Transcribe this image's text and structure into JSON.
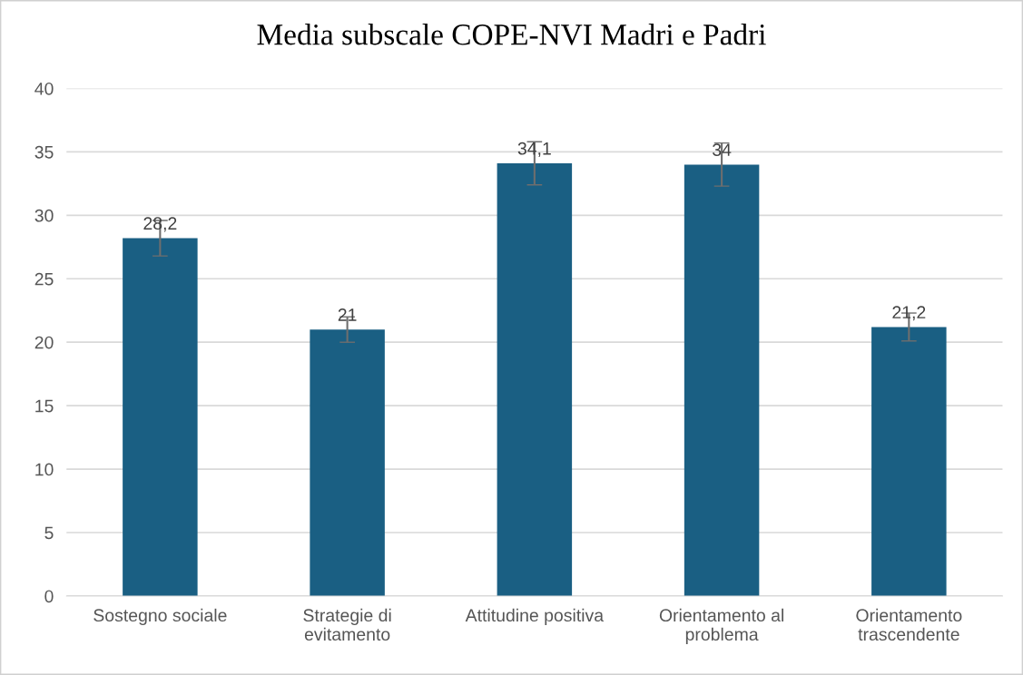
{
  "chart_data": {
    "type": "bar",
    "title": "Media subscale COPE-NVI Madri e Padri",
    "categories": [
      "Sostegno sociale",
      "Strategie di\nevitamento",
      "Attitudine positiva",
      "Orientamento al\nproblema",
      "Orientamento\ntrascendente"
    ],
    "values": [
      28.2,
      21,
      34.1,
      34,
      21.2
    ],
    "value_labels": [
      "28,2",
      "21",
      "34,1",
      "34",
      "21,2"
    ],
    "errors": [
      1.4,
      1.0,
      1.7,
      1.7,
      1.1
    ],
    "color": "#1a5f83",
    "ylim": [
      0,
      40
    ],
    "yticks": [
      0,
      5,
      10,
      15,
      20,
      25,
      30,
      35,
      40
    ],
    "grid": "y",
    "legend": false
  }
}
